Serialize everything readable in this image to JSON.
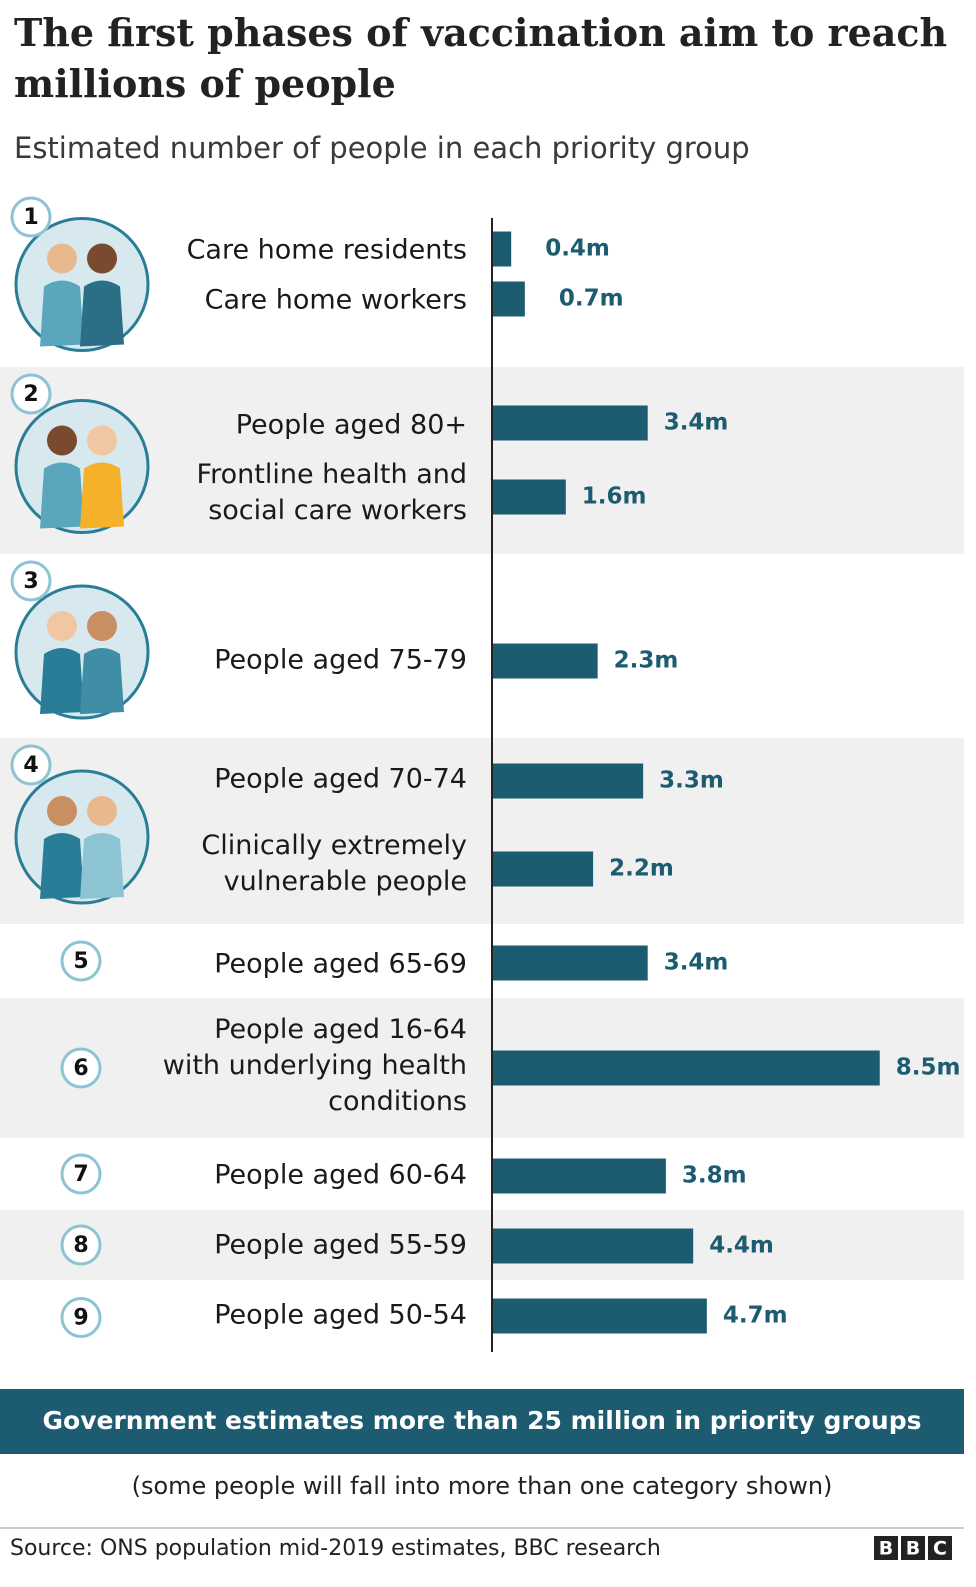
{
  "chart_data": {
    "type": "bar",
    "orientation": "horizontal",
    "title": [
      "The first phases of vaccination aim to reach",
      "millions of people"
    ],
    "subtitle": "Estimated number of people in each priority group",
    "color": "#1d5c70",
    "xlim": [
      0,
      10
    ],
    "groups": [
      {
        "number": 1,
        "categories": [
          "Care home residents",
          "Care home workers"
        ],
        "values": [
          0.4,
          0.7
        ],
        "value_labels": [
          "0.4m",
          "0.7m"
        ]
      },
      {
        "number": 2,
        "categories": [
          "People aged 80+",
          "Frontline health and\nsocial care workers"
        ],
        "values": [
          3.4,
          1.6
        ],
        "value_labels": [
          "3.4m",
          "1.6m"
        ]
      },
      {
        "number": 3,
        "categories": [
          "People aged 75-79"
        ],
        "values": [
          2.3
        ],
        "value_labels": [
          "2.3m"
        ]
      },
      {
        "number": 4,
        "categories": [
          "People aged 70-74",
          "Clinically extremely\nvulnerable people"
        ],
        "values": [
          3.3,
          2.2
        ],
        "value_labels": [
          "3.3m",
          "2.2m"
        ]
      },
      {
        "number": 5,
        "categories": [
          "People aged 65-69"
        ],
        "values": [
          3.4
        ],
        "value_labels": [
          "3.4m"
        ]
      },
      {
        "number": 6,
        "categories": [
          "People aged 16-64\nwith underlying health\nconditions"
        ],
        "values": [
          8.5
        ],
        "value_labels": [
          "8.5m"
        ]
      },
      {
        "number": 7,
        "categories": [
          "People aged 60-64"
        ],
        "values": [
          3.8
        ],
        "value_labels": [
          "3.8m"
        ]
      },
      {
        "number": 8,
        "categories": [
          "People aged 55-59"
        ],
        "values": [
          4.4
        ],
        "value_labels": [
          "4.4m"
        ]
      },
      {
        "number": 9,
        "categories": [
          "People aged 50-54"
        ],
        "values": [
          4.7
        ],
        "value_labels": [
          "4.7m"
        ]
      }
    ],
    "banner": "Government estimates more than 25 million in priority groups",
    "note": "(some people will fall into more than one category shown)",
    "source": "Source: ONS population mid-2019 estimates, BBC research",
    "logo": [
      "B",
      "B",
      "C"
    ]
  }
}
